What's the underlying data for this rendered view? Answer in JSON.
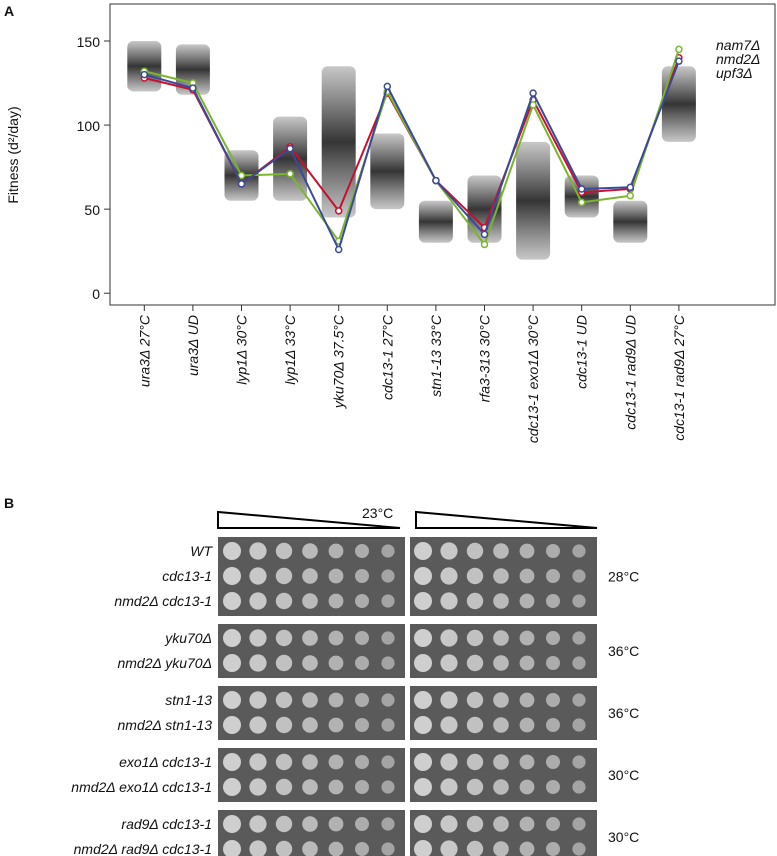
{
  "panel_a": {
    "label": "A",
    "chart_data": {
      "type": "line",
      "y_label": "Fitness (d²/day)",
      "categories": [
        "ura3Δ 27°C",
        "ura3Δ UD",
        "lyp1Δ 30°C",
        "lyp1Δ 33°C",
        "yku70Δ 37.5°C",
        "cdc13-1 27°C",
        "stn1-13 33°C",
        "rfa3-313 30°C",
        "cdc13-1 exo1Δ 30°C",
        "cdc13-1 UD",
        "cdc13-1 rad9Δ UD",
        "cdc13-1 rad9Δ 27°C"
      ],
      "clouds": [
        [
          120,
          150
        ],
        [
          118,
          148
        ],
        [
          55,
          85
        ],
        [
          55,
          105
        ],
        [
          45,
          135
        ],
        [
          50,
          95
        ],
        [
          30,
          55
        ],
        [
          30,
          70
        ],
        [
          20,
          90
        ],
        [
          45,
          70
        ],
        [
          30,
          55
        ],
        [
          90,
          135
        ]
      ],
      "series": [
        {
          "name": "nam7Δ",
          "color": "#c8102e",
          "values": [
            128,
            121,
            65,
            87,
            49,
            119,
            67,
            39,
            115,
            60,
            62,
            140
          ]
        },
        {
          "name": "nmd2Δ",
          "color": "#7ab52e",
          "values": [
            132,
            125,
            70,
            71,
            31,
            120,
            67,
            29,
            112,
            54,
            58,
            145
          ]
        },
        {
          "name": "upf3Δ",
          "color": "#3a4a9a",
          "values": [
            130,
            122,
            65,
            86,
            26,
            123,
            67,
            35,
            119,
            62,
            63,
            138
          ]
        }
      ],
      "ylim": [
        -7,
        172
      ],
      "yticks": [
        0,
        50,
        100,
        150
      ]
    }
  },
  "panel_b": {
    "label": "B",
    "temperature": "23°C",
    "groups": [
      {
        "temp": "28°C",
        "rows": [
          "WT",
          "cdc13-1",
          "nmd2Δ cdc13-1"
        ]
      },
      {
        "temp": "36°C",
        "rows": [
          "yku70Δ",
          "nmd2Δ yku70Δ"
        ]
      },
      {
        "temp": "36°C",
        "rows": [
          "stn1-13",
          "nmd2Δ stn1-13"
        ]
      },
      {
        "temp": "30°C",
        "rows": [
          "exo1Δ cdc13-1",
          "nmd2Δ  exo1Δ cdc13-1"
        ]
      },
      {
        "temp": "30°C",
        "rows": [
          "rad9Δ cdc13-1",
          "nmd2Δ  rad9Δ cdc13-1"
        ]
      }
    ]
  }
}
